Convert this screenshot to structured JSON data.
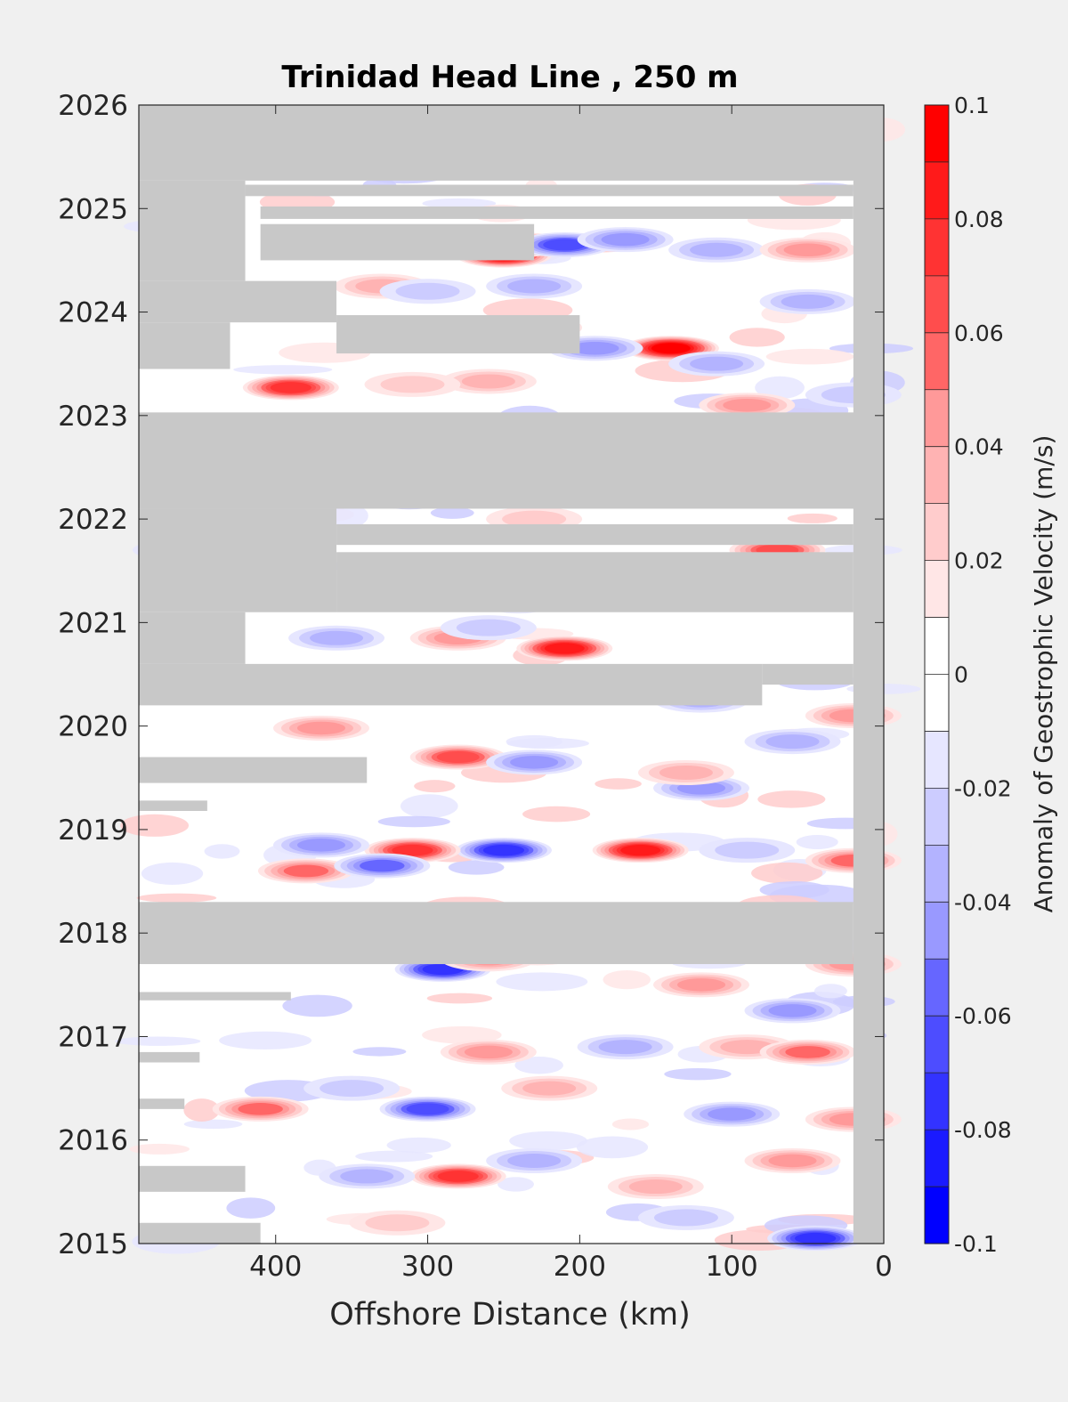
{
  "chart_data": {
    "type": "heatmap",
    "title": "Trinidad Head Line , 250 m",
    "xlabel": "Offshore Distance (km)",
    "ylabel": "",
    "x_reversed": true,
    "xlim": [
      490,
      0
    ],
    "ylim": [
      2015,
      2026
    ],
    "xticks": [
      400,
      300,
      200,
      100,
      0
    ],
    "yticks": [
      2015,
      2016,
      2017,
      2018,
      2019,
      2020,
      2021,
      2022,
      2023,
      2024,
      2025,
      2026
    ],
    "colorbar": {
      "label": "Anomaly of Geostrophic Velocity (m/s)",
      "range": [
        -0.1,
        0.1
      ],
      "ticks": [
        "0.1",
        "0.08",
        "0.06",
        "0.04",
        "0.02",
        "0",
        "-0.02",
        "-0.04",
        "-0.06",
        "-0.08",
        "-0.1"
      ],
      "levels": 20,
      "colors": [
        "#0000ff",
        "#1a1aff",
        "#3333ff",
        "#4d4dff",
        "#6666ff",
        "#8080ff",
        "#9999ff",
        "#b3b3ff",
        "#ccccff",
        "#e6e6ff",
        "#ffffff",
        "#ffffff",
        "#ffe6e6",
        "#ffcccc",
        "#ffb3b3",
        "#ff9999",
        "#ff8080",
        "#ff6666",
        "#ff4d4d",
        "#ff3333",
        "#ff1a1a",
        "#ff0000"
      ]
    },
    "no_data_color": "#c8c8c8",
    "no_data_regions": [
      {
        "from_km": 490,
        "to_km": 0,
        "start": 2025.27,
        "end": 2026.0
      },
      {
        "from_km": 490,
        "to_km": 420,
        "start": 2024.3,
        "end": 2025.27
      },
      {
        "from_km": 420,
        "to_km": 20,
        "start": 2025.12,
        "end": 2025.23
      },
      {
        "from_km": 410,
        "to_km": 20,
        "start": 2024.9,
        "end": 2025.02
      },
      {
        "from_km": 410,
        "to_km": 230,
        "start": 2024.5,
        "end": 2024.85
      },
      {
        "from_km": 490,
        "to_km": 360,
        "start": 2023.9,
        "end": 2024.3
      },
      {
        "from_km": 360,
        "to_km": 200,
        "start": 2023.6,
        "end": 2023.97
      },
      {
        "from_km": 490,
        "to_km": 430,
        "start": 2023.45,
        "end": 2023.9
      },
      {
        "from_km": 490,
        "to_km": 0,
        "start": 2022.1,
        "end": 2023.03
      },
      {
        "from_km": 490,
        "to_km": 360,
        "start": 2021.1,
        "end": 2022.1
      },
      {
        "from_km": 360,
        "to_km": 20,
        "start": 2021.75,
        "end": 2021.95
      },
      {
        "from_km": 360,
        "to_km": 20,
        "start": 2021.1,
        "end": 2021.68
      },
      {
        "from_km": 490,
        "to_km": 420,
        "start": 2020.6,
        "end": 2021.1
      },
      {
        "from_km": 490,
        "to_km": 80,
        "start": 2020.2,
        "end": 2020.6
      },
      {
        "from_km": 80,
        "to_km": 20,
        "start": 2020.4,
        "end": 2020.6
      },
      {
        "from_km": 490,
        "to_km": 340,
        "start": 2019.45,
        "end": 2019.7
      },
      {
        "from_km": 490,
        "to_km": 445,
        "start": 2019.18,
        "end": 2019.28
      },
      {
        "from_km": 490,
        "to_km": 20,
        "start": 2017.7,
        "end": 2018.3
      },
      {
        "from_km": 490,
        "to_km": 390,
        "start": 2017.35,
        "end": 2017.43
      },
      {
        "from_km": 490,
        "to_km": 450,
        "start": 2016.75,
        "end": 2016.85
      },
      {
        "from_km": 490,
        "to_km": 460,
        "start": 2016.3,
        "end": 2016.4
      },
      {
        "from_km": 490,
        "to_km": 420,
        "start": 2015.5,
        "end": 2015.75
      },
      {
        "from_km": 490,
        "to_km": 410,
        "start": 2015.0,
        "end": 2015.2
      },
      {
        "from_km": 20,
        "to_km": 0,
        "start": 2015.0,
        "end": 2026.0
      }
    ],
    "anomaly_features": [
      {
        "x_km": 250,
        "year": 2024.55,
        "value": 0.09
      },
      {
        "x_km": 240,
        "year": 2024.65,
        "value": 0.07
      },
      {
        "x_km": 210,
        "year": 2024.65,
        "value": -0.06
      },
      {
        "x_km": 170,
        "year": 2024.7,
        "value": -0.04
      },
      {
        "x_km": 110,
        "year": 2024.6,
        "value": -0.03
      },
      {
        "x_km": 50,
        "year": 2024.6,
        "value": 0.04
      },
      {
        "x_km": 330,
        "year": 2024.25,
        "value": 0.03
      },
      {
        "x_km": 300,
        "year": 2024.2,
        "value": -0.02
      },
      {
        "x_km": 230,
        "year": 2024.25,
        "value": -0.03
      },
      {
        "x_km": 140,
        "year": 2023.65,
        "value": 0.09
      },
      {
        "x_km": 110,
        "year": 2023.5,
        "value": -0.03
      },
      {
        "x_km": 190,
        "year": 2023.65,
        "value": -0.04
      },
      {
        "x_km": 230,
        "year": 2023.85,
        "value": 0.05
      },
      {
        "x_km": 50,
        "year": 2024.1,
        "value": -0.03
      },
      {
        "x_km": 390,
        "year": 2023.27,
        "value": 0.07
      },
      {
        "x_km": 260,
        "year": 2023.33,
        "value": 0.03
      },
      {
        "x_km": 90,
        "year": 2023.1,
        "value": 0.04
      },
      {
        "x_km": 310,
        "year": 2023.3,
        "value": 0.02
      },
      {
        "x_km": 20,
        "year": 2023.2,
        "value": -0.02
      },
      {
        "x_km": 230,
        "year": 2022.0,
        "value": 0.02
      },
      {
        "x_km": 70,
        "year": 2021.7,
        "value": 0.06
      },
      {
        "x_km": 210,
        "year": 2020.75,
        "value": 0.08
      },
      {
        "x_km": 280,
        "year": 2020.85,
        "value": 0.04
      },
      {
        "x_km": 360,
        "year": 2020.85,
        "value": -0.03
      },
      {
        "x_km": 260,
        "year": 2020.95,
        "value": -0.02
      },
      {
        "x_km": 120,
        "year": 2020.25,
        "value": -0.03
      },
      {
        "x_km": 20,
        "year": 2020.1,
        "value": 0.04
      },
      {
        "x_km": 370,
        "year": 2019.98,
        "value": 0.04
      },
      {
        "x_km": 280,
        "year": 2019.7,
        "value": 0.06
      },
      {
        "x_km": 230,
        "year": 2019.65,
        "value": -0.04
      },
      {
        "x_km": 120,
        "year": 2019.4,
        "value": -0.04
      },
      {
        "x_km": 60,
        "year": 2019.85,
        "value": -0.03
      },
      {
        "x_km": 130,
        "year": 2019.55,
        "value": 0.03
      },
      {
        "x_km": 250,
        "year": 2018.8,
        "value": -0.07
      },
      {
        "x_km": 160,
        "year": 2018.8,
        "value": 0.08
      },
      {
        "x_km": 310,
        "year": 2018.8,
        "value": 0.07
      },
      {
        "x_km": 380,
        "year": 2018.6,
        "value": 0.05
      },
      {
        "x_km": 330,
        "year": 2018.65,
        "value": -0.05
      },
      {
        "x_km": 370,
        "year": 2018.85,
        "value": -0.04
      },
      {
        "x_km": 20,
        "year": 2018.7,
        "value": 0.05
      },
      {
        "x_km": 90,
        "year": 2018.8,
        "value": -0.02
      },
      {
        "x_km": 290,
        "year": 2017.65,
        "value": -0.07
      },
      {
        "x_km": 260,
        "year": 2017.75,
        "value": 0.04
      },
      {
        "x_km": 120,
        "year": 2017.5,
        "value": 0.04
      },
      {
        "x_km": 60,
        "year": 2017.25,
        "value": -0.04
      },
      {
        "x_km": 20,
        "year": 2017.7,
        "value": 0.04
      },
      {
        "x_km": 260,
        "year": 2016.85,
        "value": 0.04
      },
      {
        "x_km": 170,
        "year": 2016.9,
        "value": -0.03
      },
      {
        "x_km": 90,
        "year": 2016.9,
        "value": 0.03
      },
      {
        "x_km": 50,
        "year": 2016.85,
        "value": 0.05
      },
      {
        "x_km": 220,
        "year": 2016.5,
        "value": 0.03
      },
      {
        "x_km": 300,
        "year": 2016.3,
        "value": -0.06
      },
      {
        "x_km": 410,
        "year": 2016.3,
        "value": 0.05
      },
      {
        "x_km": 100,
        "year": 2016.25,
        "value": -0.04
      },
      {
        "x_km": 20,
        "year": 2016.2,
        "value": 0.04
      },
      {
        "x_km": 350,
        "year": 2016.5,
        "value": -0.02
      },
      {
        "x_km": 280,
        "year": 2015.65,
        "value": 0.07
      },
      {
        "x_km": 340,
        "year": 2015.65,
        "value": -0.03
      },
      {
        "x_km": 150,
        "year": 2015.55,
        "value": 0.03
      },
      {
        "x_km": 60,
        "year": 2015.8,
        "value": 0.04
      },
      {
        "x_km": 230,
        "year": 2015.8,
        "value": -0.03
      },
      {
        "x_km": 45,
        "year": 2015.05,
        "value": -0.07
      },
      {
        "x_km": 320,
        "year": 2015.2,
        "value": 0.02
      },
      {
        "x_km": 130,
        "year": 2015.25,
        "value": -0.02
      }
    ]
  }
}
